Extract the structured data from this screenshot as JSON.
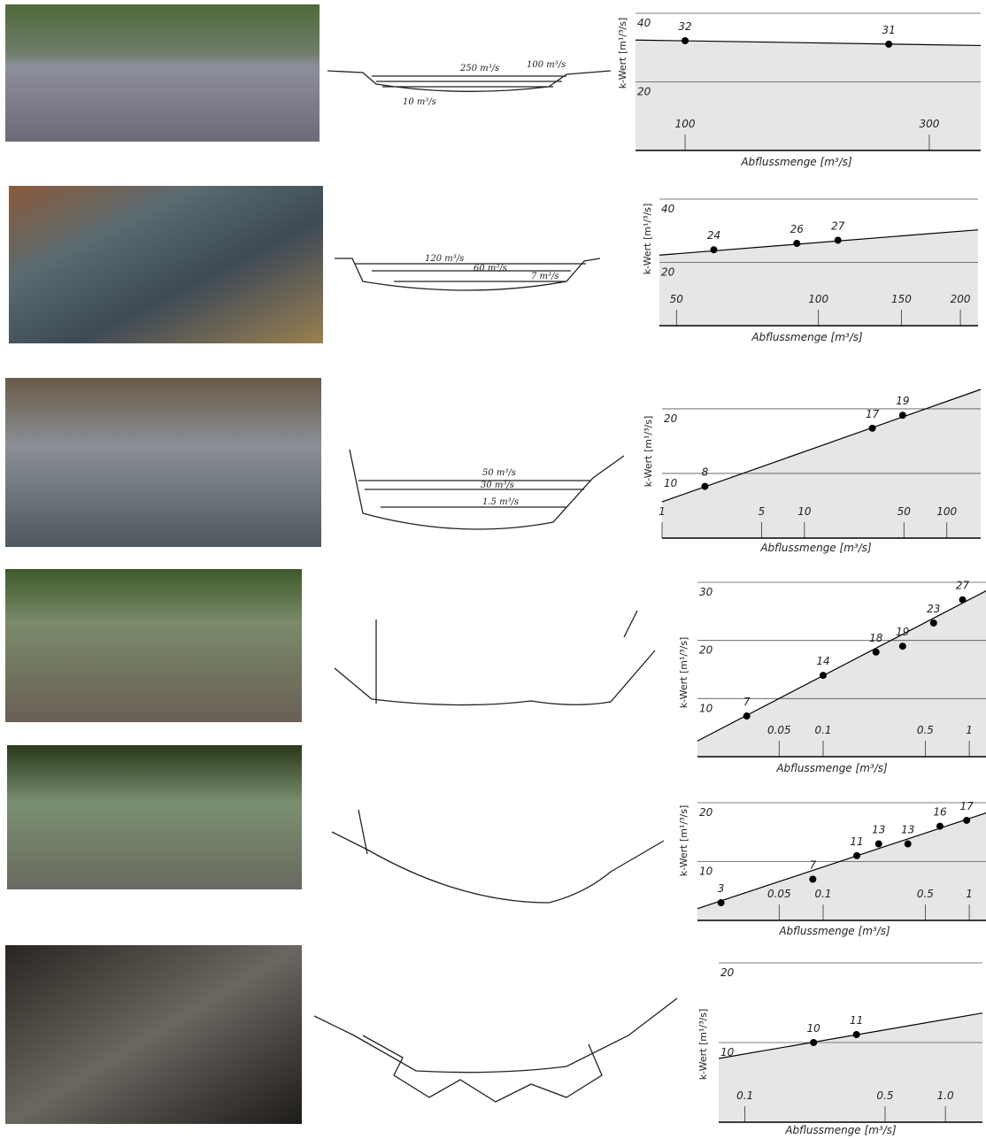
{
  "chart_data": [
    {
      "type": "scatter",
      "y_label": "k-Wert [m¹/³/s]",
      "x_label": "Abflussmenge [m³/s]",
      "x_scale": "log",
      "xlim": [
        80,
        378
      ],
      "ylim": [
        0,
        40
      ],
      "xticks": [
        100,
        300
      ],
      "yticks": [
        20,
        40
      ],
      "grid": true,
      "color": "#000000",
      "fill": "#e6e6e6",
      "series": [
        {
          "x": [
            100,
            250
          ],
          "values": [
            32,
            31
          ]
        }
      ],
      "trend": {
        "x": [
          80,
          378
        ],
        "values": [
          32.2,
          30.6
        ]
      }
    },
    {
      "type": "scatter",
      "y_label": "k-Wert [m¹/³/s]",
      "x_label": "Abflussmenge [m³/s]",
      "x_scale": "log",
      "xlim": [
        46,
        218
      ],
      "ylim": [
        0,
        40
      ],
      "xticks": [
        50,
        100,
        150,
        200
      ],
      "yticks": [
        20,
        40
      ],
      "grid": true,
      "color": "#000000",
      "fill": "#e6e6e6",
      "series": [
        {
          "x": [
            60,
            90,
            110
          ],
          "values": [
            24,
            26,
            27
          ]
        }
      ],
      "trend": {
        "x": [
          46,
          218
        ],
        "values": [
          22.3,
          30.3
        ]
      }
    },
    {
      "type": "scatter",
      "y_label": "k-Wert [m¹/³/s]",
      "x_label": "Abflussmenge [m³/s]",
      "x_scale": "log",
      "xlim": [
        1,
        173
      ],
      "ylim": [
        0,
        23
      ],
      "xticks": [
        1,
        5,
        10,
        50,
        100
      ],
      "yticks": [
        10,
        20
      ],
      "grid": true,
      "color": "#000000",
      "fill": "#e6e6e6",
      "series": [
        {
          "x": [
            2,
            30,
            49
          ],
          "values": [
            8,
            17,
            19
          ]
        }
      ],
      "trend": {
        "x": [
          1,
          173
        ],
        "values": [
          5.6,
          23
        ]
      }
    },
    {
      "type": "scatter",
      "y_label": "k-Wert [m¹/³/s]",
      "x_label": "Abflussmenge [m³/s]",
      "x_scale": "log",
      "xlim": [
        0.0138,
        1.32
      ],
      "ylim": [
        0,
        30
      ],
      "xticks": [
        0.05,
        0.1,
        0.5,
        1
      ],
      "yticks": [
        10,
        20,
        30
      ],
      "grid": true,
      "color": "#000000",
      "fill": "#e6e6e6",
      "series": [
        {
          "x": [
            0.03,
            0.1,
            0.23,
            0.35,
            0.57,
            0.9
          ],
          "values": [
            7,
            14,
            18,
            19,
            23,
            27
          ]
        }
      ],
      "trend": {
        "x": [
          0.0138,
          1.32
        ],
        "values": [
          2.7,
          28.6
        ]
      }
    },
    {
      "type": "scatter",
      "y_label": "k-Wert [m¹/³/s]",
      "x_label": "Abflussmenge [m³/s]",
      "x_scale": "log",
      "xlim": [
        0.0138,
        1.32
      ],
      "ylim": [
        0,
        20
      ],
      "xticks": [
        0.05,
        0.1,
        0.5,
        1
      ],
      "yticks": [
        10,
        20
      ],
      "grid": true,
      "color": "#000000",
      "fill": "#e6e6e6",
      "series": [
        {
          "x": [
            0.02,
            0.085,
            0.17,
            0.24,
            0.38,
            0.63,
            0.96
          ],
          "values": [
            3,
            7,
            11,
            13,
            13,
            16,
            17
          ]
        }
      ],
      "trend": {
        "x": [
          0.0138,
          1.32
        ],
        "values": [
          2,
          18.3
        ]
      }
    },
    {
      "type": "scatter",
      "y_label": "k-Wert [m¹/³/s]",
      "x_label": "Abflussmenge [m³/s]",
      "x_scale": "log",
      "xlim": [
        0.074,
        1.53
      ],
      "ylim": [
        0,
        20
      ],
      "xticks": [
        0.1,
        0.5,
        {
          "value": 1,
          "label": "1.0"
        }
      ],
      "yticks": [
        10,
        20
      ],
      "grid": true,
      "color": "#000000",
      "fill": "#e6e6e6",
      "series": [
        {
          "x": [
            0.22,
            0.36
          ],
          "values": [
            10,
            11
          ]
        }
      ],
      "trend": {
        "x": [
          0.074,
          1.53
        ],
        "values": [
          8,
          13.7
        ]
      }
    }
  ],
  "sketches": [
    {
      "labels": [
        "250 m³/s",
        "100 m³/s",
        "10 m³/s"
      ]
    },
    {
      "labels": [
        "120 m³/s",
        "60 m³/s",
        "7 m³/s"
      ]
    },
    {
      "labels": [
        "50 m³/s",
        "30 m³/s",
        "1.5 m³/s"
      ]
    }
  ]
}
